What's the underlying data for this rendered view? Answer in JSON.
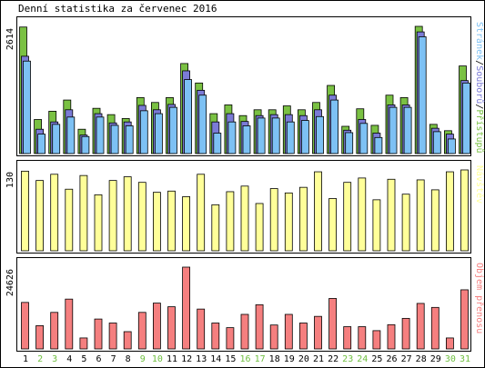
{
  "title": "Denní statistika za červenec 2016",
  "colors": {
    "background": "#ffffff",
    "hits": "#7ac143",
    "files": "#7b7bd6",
    "pages": "#7dc1f4",
    "visits": "#ffff99",
    "kbytes": "#f57f7f",
    "weekend_day": "#6fbf40",
    "workday": "#000000",
    "outline": "#000000"
  },
  "chart_data": [
    {
      "type": "bar",
      "y_max_label": "2614",
      "ylim": [
        0,
        2614
      ],
      "legend_parts": [
        {
          "text": "Stránek",
          "color": "#7dc1f4"
        },
        {
          "text": "/",
          "color": "#000000"
        },
        {
          "text": "Souborů",
          "color": "#7b7bd6"
        },
        {
          "text": "/",
          "color": "#000000"
        },
        {
          "text": "Přístupů",
          "color": "#7ac143"
        }
      ],
      "series": [
        {
          "name": "Přístupů",
          "values": [
            2600,
            700,
            870,
            1100,
            500,
            930,
            800,
            720,
            1150,
            1050,
            1150,
            1850,
            1450,
            820,
            1000,
            780,
            900,
            900,
            980,
            900,
            1050,
            1400,
            560,
            920,
            580,
            1200,
            1150,
            2614,
            600,
            470,
            1800
          ]
        },
        {
          "name": "Souborů",
          "values": [
            2000,
            500,
            650,
            900,
            380,
            820,
            630,
            650,
            990,
            900,
            1010,
            1700,
            1300,
            650,
            820,
            660,
            780,
            800,
            800,
            780,
            900,
            1200,
            480,
            700,
            420,
            1000,
            1000,
            2500,
            520,
            400,
            1500
          ]
        },
        {
          "name": "Stránek",
          "values": [
            1900,
            400,
            600,
            750,
            350,
            750,
            580,
            570,
            880,
            820,
            950,
            1520,
            1200,
            420,
            650,
            570,
            730,
            730,
            650,
            680,
            760,
            1100,
            430,
            620,
            330,
            950,
            950,
            2400,
            450,
            300,
            1450
          ]
        }
      ]
    },
    {
      "type": "bar",
      "y_max_label": "130",
      "ylim": [
        0,
        130
      ],
      "legend_parts": [
        {
          "text": "Návštěv",
          "color": "#ffff99"
        }
      ],
      "series": [
        {
          "name": "Návštěv",
          "values": [
            128,
            113,
            123,
            99,
            121,
            90,
            113,
            119,
            110,
            94,
            96,
            87,
            123,
            74,
            95,
            104,
            76,
            100,
            93,
            102,
            127,
            84,
            110,
            117,
            82,
            115,
            91,
            114,
            98,
            127,
            130
          ]
        }
      ]
    },
    {
      "type": "bar",
      "y_max_label": "24626",
      "ylim": [
        0,
        24626
      ],
      "legend_parts": [
        {
          "text": "Objem přenosu",
          "color": "#f57f7f"
        }
      ],
      "series": [
        {
          "name": "Objem přenosu",
          "values": [
            14000,
            7000,
            11000,
            15000,
            3300,
            9000,
            7800,
            5200,
            11000,
            13800,
            12700,
            24626,
            12000,
            7800,
            6400,
            10400,
            13300,
            7200,
            10400,
            7800,
            9800,
            15200,
            6700,
            6700,
            5500,
            7300,
            9200,
            13700,
            12500,
            3300,
            17800
          ]
        }
      ]
    }
  ],
  "x_axis": {
    "days": [
      "1",
      "2",
      "3",
      "4",
      "5",
      "6",
      "7",
      "8",
      "9",
      "10",
      "11",
      "12",
      "13",
      "14",
      "15",
      "16",
      "17",
      "18",
      "19",
      "20",
      "21",
      "22",
      "23",
      "24",
      "25",
      "26",
      "27",
      "28",
      "29",
      "30",
      "31"
    ],
    "weekend_days": [
      "2",
      "3",
      "9",
      "10",
      "16",
      "17",
      "23",
      "24",
      "30",
      "31"
    ]
  }
}
